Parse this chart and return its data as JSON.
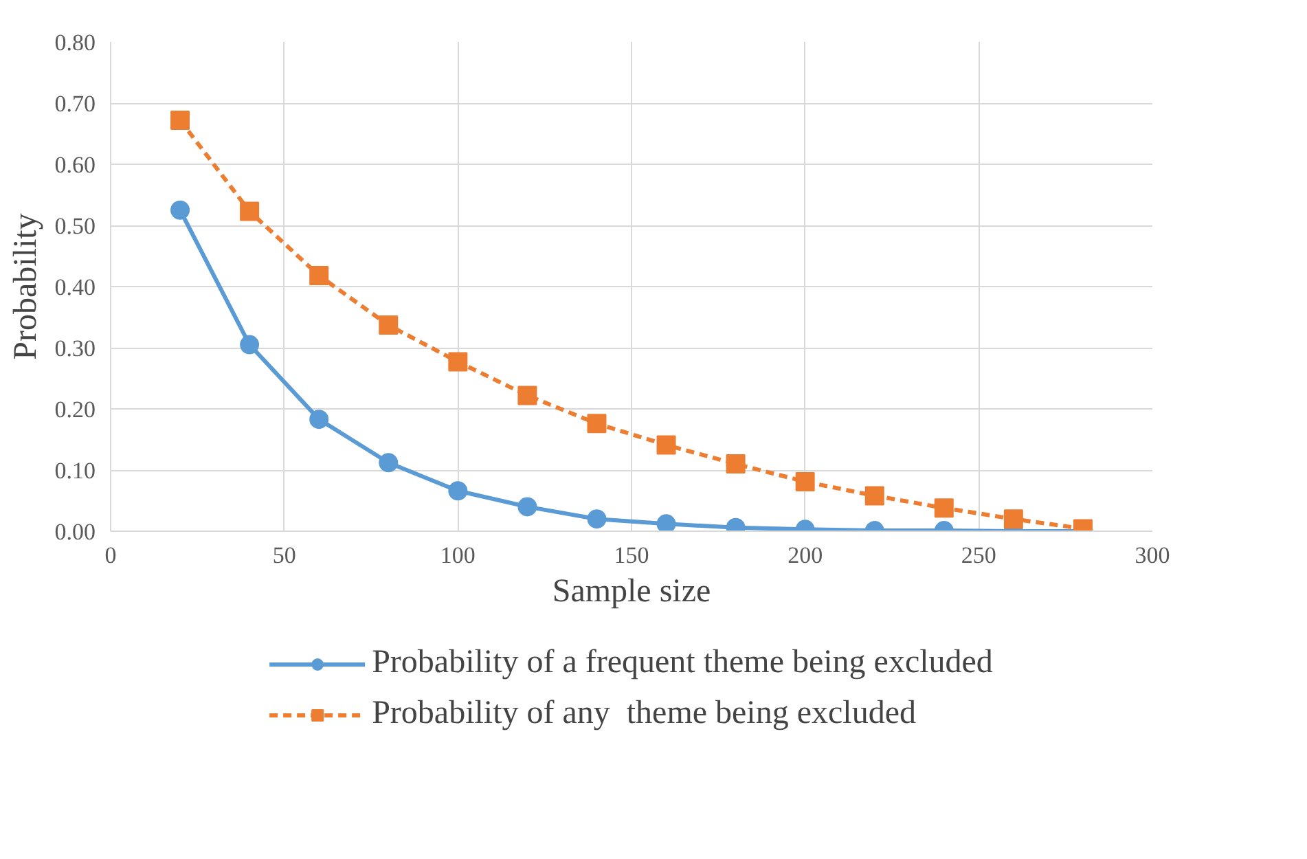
{
  "chart_data": {
    "type": "line",
    "xlabel": "Sample size",
    "ylabel": "Probability",
    "x": [
      20,
      40,
      60,
      80,
      100,
      120,
      140,
      160,
      180,
      200,
      220,
      240,
      260,
      280
    ],
    "series": [
      {
        "name": "Probability of a frequent theme being excluded",
        "color": "#5b9bd5",
        "marker": "circle",
        "line_style": "solid",
        "values": [
          0.525,
          0.305,
          0.183,
          0.112,
          0.066,
          0.04,
          0.02,
          0.012,
          0.006,
          0.003,
          0.001,
          0.001,
          0.0,
          0.0
        ]
      },
      {
        "name": "Probability of any  theme being excluded",
        "color": "#ed7d31",
        "marker": "square",
        "line_style": "dashed",
        "values": [
          0.672,
          0.523,
          0.418,
          0.337,
          0.277,
          0.222,
          0.176,
          0.141,
          0.11,
          0.081,
          0.058,
          0.038,
          0.02,
          0.004
        ]
      }
    ],
    "xlim": [
      0,
      300
    ],
    "xticks": [
      0,
      50,
      100,
      150,
      200,
      250,
      300
    ],
    "ylim": [
      0,
      0.8
    ],
    "yticks": [
      {
        "value": 0,
        "label": "0.00"
      },
      {
        "value": 0.1,
        "label": "0.10"
      },
      {
        "value": 0.2,
        "label": "0.20"
      },
      {
        "value": 0.3,
        "label": "0.30"
      },
      {
        "value": 0.4,
        "label": "0.40"
      },
      {
        "value": 0.5,
        "label": "0.50"
      },
      {
        "value": 0.6,
        "label": "0.60"
      },
      {
        "value": 0.7,
        "label": "0.70"
      },
      {
        "value": 0.8,
        "label": "0.80"
      }
    ],
    "grid": true,
    "legend": "bottom"
  }
}
